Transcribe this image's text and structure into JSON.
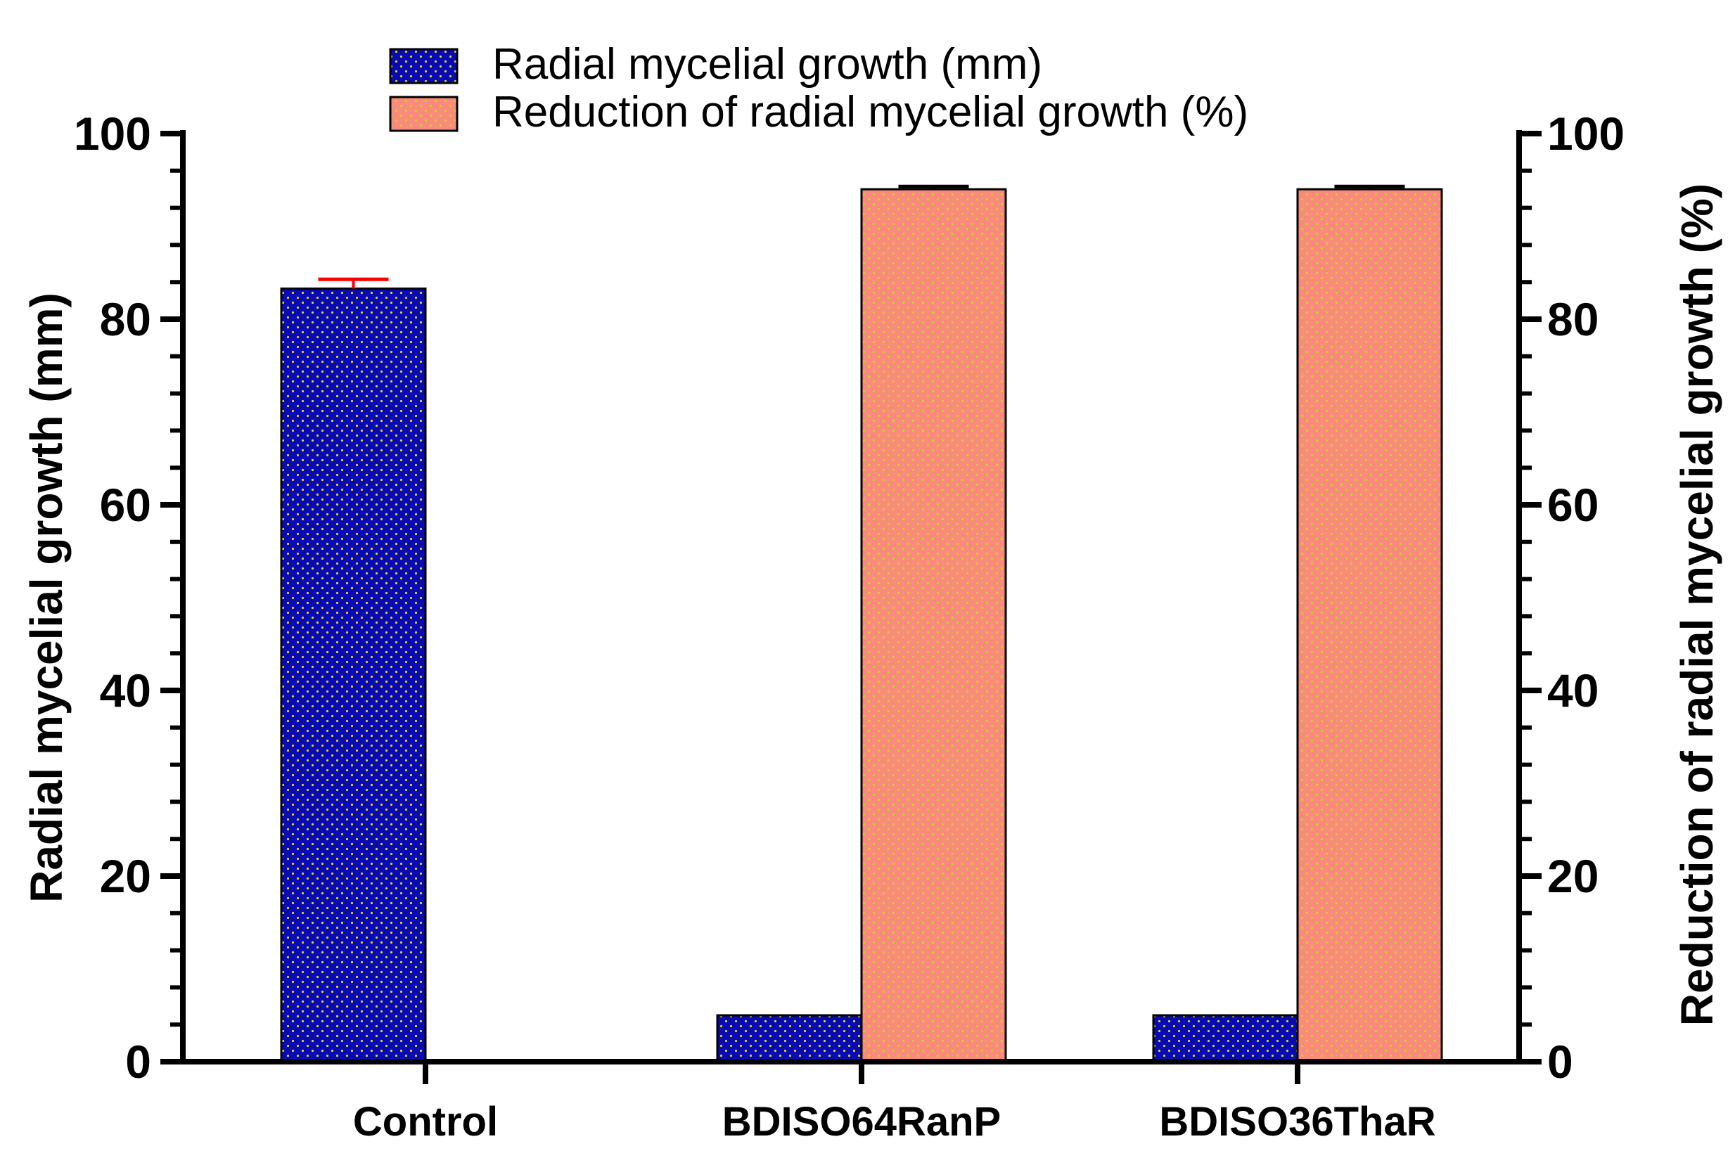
{
  "chart_data": {
    "type": "bar",
    "categories": [
      "Control",
      "BDISO64RanP",
      "BDISO36ThaR"
    ],
    "series": [
      {
        "name": "Radial mycelial growth (mm)",
        "axis": "left",
        "color": "#0a0ab4",
        "dot_color": "#d8d820",
        "values": [
          83.3,
          5.0,
          5.0
        ],
        "error": [
          1.0,
          0,
          0
        ],
        "error_color": "#ff0000"
      },
      {
        "name": "Reduction of radial mycelial growth (%)",
        "axis": "right",
        "color": "#f98b7a",
        "dot_color": "#d8c830",
        "values": [
          0,
          94.0,
          94.0
        ],
        "error": [
          0,
          0.3,
          0.3
        ],
        "error_color": "#000000"
      }
    ],
    "ylabel": "Radial mycelial growth (mm)",
    "y2label": "Reduction of radial mycelial growth (%)",
    "ylim": [
      0,
      100
    ],
    "y2lim": [
      0,
      100
    ],
    "yticks": [
      0,
      20,
      40,
      60,
      80,
      100
    ],
    "y2ticks": [
      0,
      20,
      40,
      60,
      80,
      100
    ],
    "minor_step": 4,
    "grid": false,
    "legend_position": "top-center"
  }
}
